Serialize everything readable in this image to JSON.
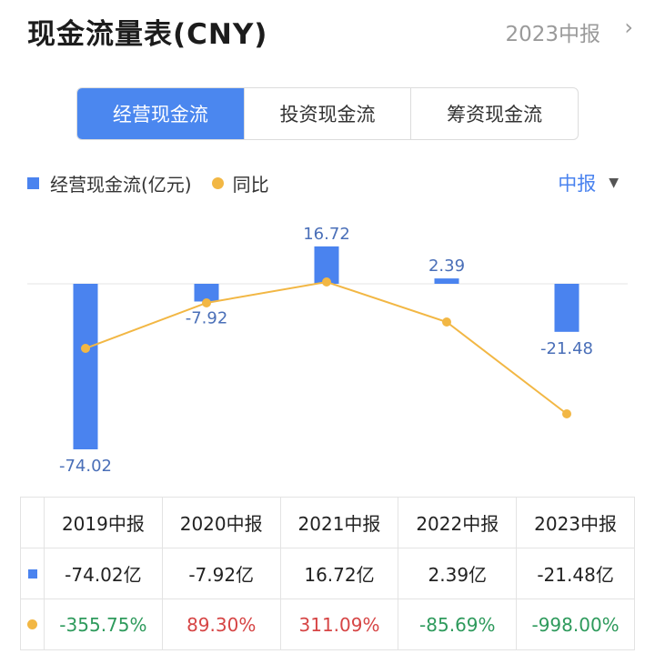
{
  "header": {
    "title": "现金流量表(CNY)",
    "period": "2023中报",
    "chevron": "›"
  },
  "tabs": [
    {
      "label": "经营现金流",
      "active": true
    },
    {
      "label": "投资现金流",
      "active": false
    },
    {
      "label": "筹资现金流",
      "active": false
    }
  ],
  "legend": {
    "bar_label": "经营现金流(亿元)",
    "line_label": "同比",
    "period_select": "中报",
    "caret": "▼"
  },
  "colors": {
    "bar": "#4a83ef",
    "line": "#f2b744",
    "positive": "#d64545",
    "negative": "#2e9a5c",
    "active_tab": "#4b87ef"
  },
  "chart_data": {
    "type": "bar",
    "categories": [
      "2019中报",
      "2020中报",
      "2021中报",
      "2022中报",
      "2023中报"
    ],
    "series": [
      {
        "name": "经营现金流(亿元)",
        "type": "bar",
        "values": [
          -74.02,
          -7.92,
          16.72,
          2.39,
          -21.48
        ]
      },
      {
        "name": "同比",
        "type": "line",
        "values": [
          -355.75,
          89.3,
          311.09,
          -85.69,
          -998.0
        ]
      }
    ],
    "bar_labels": [
      "-74.02",
      "-7.92",
      "16.72",
      "2.39",
      "-21.48"
    ]
  },
  "table": {
    "headers": [
      "2019中报",
      "2020中报",
      "2021中报",
      "2022中报",
      "2023中报"
    ],
    "values": [
      "-74.02亿",
      "-7.92亿",
      "16.72亿",
      "2.39亿",
      "-21.48亿"
    ],
    "yoy": [
      "-355.75%",
      "89.30%",
      "311.09%",
      "-85.69%",
      "-998.00%"
    ]
  }
}
